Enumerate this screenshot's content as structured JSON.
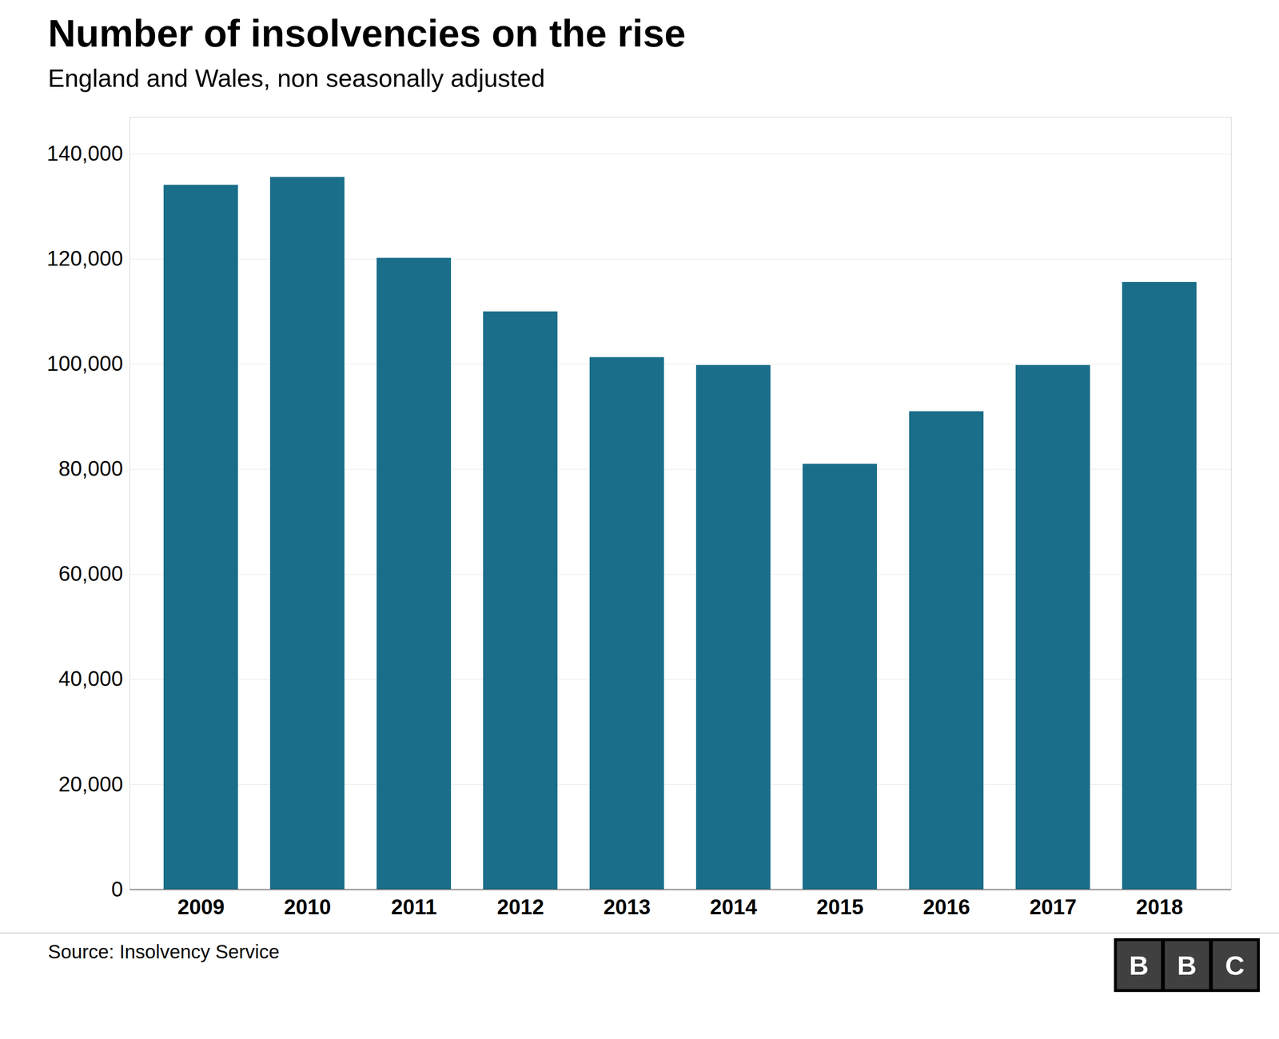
{
  "chart_data": {
    "type": "bar",
    "title": "Number of insolvencies on the rise",
    "subtitle": "England and Wales, non seasonally adjusted",
    "source": "Source: Insolvency Service",
    "annotations": [
      "BBC"
    ],
    "categories": [
      "2009",
      "2010",
      "2011",
      "2012",
      "2013",
      "2014",
      "2015",
      "2016",
      "2017",
      "2018"
    ],
    "values": [
      134100,
      135600,
      120200,
      110000,
      101300,
      99800,
      81000,
      91000,
      99800,
      115600
    ],
    "color": "#1a6e8a",
    "ylim": [
      0,
      147000
    ],
    "yticks": [
      0,
      {
        "value": 20000,
        "label": "20,000"
      },
      {
        "value": 40000,
        "label": "40,000"
      },
      {
        "value": 60000,
        "label": "60,000"
      },
      {
        "value": 80000,
        "label": "80,000"
      },
      {
        "value": 100000,
        "label": "100,000"
      },
      {
        "value": 120000,
        "label": "120,000"
      },
      {
        "value": 140000,
        "label": "140,000"
      }
    ],
    "grid": true
  }
}
